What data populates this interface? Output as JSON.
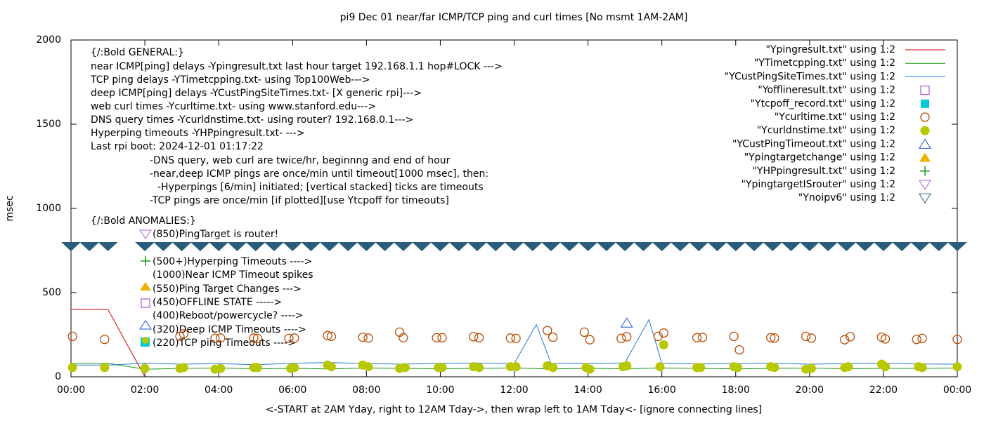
{
  "chart_data": {
    "type": "line",
    "title": "pi9 Dec 01  near/far ICMP/TCP ping and curl times [No msmt 1AM-2AM]",
    "xlabel": "<-START at 2AM Yday, right to 12AM Tday->, then wrap left to 1AM Tday<- [ignore connecting lines]",
    "ylabel": "msec",
    "xlim": [
      0,
      24
    ],
    "ylim": [
      0,
      2000
    ],
    "xticks": [
      {
        "value": 0,
        "label": "00:00"
      },
      {
        "value": 2,
        "label": "02:00"
      },
      {
        "value": 4,
        "label": "04:00"
      },
      {
        "value": 6,
        "label": "06:00"
      },
      {
        "value": 8,
        "label": "08:00"
      },
      {
        "value": 10,
        "label": "10:00"
      },
      {
        "value": 12,
        "label": "12:00"
      },
      {
        "value": 14,
        "label": "14:00"
      },
      {
        "value": 16,
        "label": "16:00"
      },
      {
        "value": 18,
        "label": "18:00"
      },
      {
        "value": 20,
        "label": "20:00"
      },
      {
        "value": 22,
        "label": "22:00"
      },
      {
        "value": 24,
        "label": "00:00"
      }
    ],
    "yticks": [
      0,
      500,
      1000,
      1500,
      2000
    ],
    "legend": "top-right",
    "series": [
      {
        "name": "\"Ypingresult.txt\" using 1:2",
        "style": "line",
        "color": "#cc0000",
        "x": [
          0,
          1,
          2
        ],
        "values": [
          400,
          400,
          0
        ]
      },
      {
        "name": "\"YTimetcpping.txt\" using 1:2",
        "style": "line",
        "color": "#1a9c1a",
        "x": [
          0,
          1,
          2,
          3,
          4,
          5,
          6,
          7,
          8,
          9,
          10,
          11,
          12,
          13,
          14,
          15,
          16,
          17,
          18,
          19,
          20,
          21,
          22,
          23,
          24
        ],
        "values": [
          80,
          80,
          45,
          50,
          52,
          48,
          50,
          47,
          52,
          50,
          48,
          50,
          52,
          47,
          50,
          48,
          52,
          50,
          47,
          50,
          52,
          48,
          50,
          50,
          52
        ]
      },
      {
        "name": "\"YCustPingSiteTimes.txt\" using 1:2",
        "style": "line",
        "color": "#1f78d8",
        "x": [
          0,
          1,
          2,
          3,
          4,
          5,
          6,
          7,
          8,
          9,
          10,
          11,
          12,
          12.6,
          13,
          14,
          15,
          15.65,
          16,
          17,
          18,
          19,
          20,
          21,
          22,
          23,
          24
        ],
        "values": [
          70,
          70,
          80,
          75,
          78,
          72,
          80,
          85,
          78,
          75,
          80,
          82,
          78,
          310,
          80,
          78,
          82,
          340,
          80,
          76,
          78,
          80,
          75,
          78,
          80,
          76,
          75
        ]
      },
      {
        "name": "\"Yofflineresult.txt\" using 1:2",
        "style": "open-square",
        "color": "#9b30c8",
        "x": [],
        "values": []
      },
      {
        "name": "\"Ytcpoff_record.txt\" using 1:2",
        "style": "filled-square",
        "color": "#00c8d8",
        "x": [],
        "values": []
      },
      {
        "name": "\"Ycurltime.txt\" using 1:2",
        "style": "open-circle",
        "color": "#b84a00",
        "x": [
          0.04,
          0.91,
          2.95,
          3.05,
          3.9,
          4.05,
          4.95,
          5.05,
          5.9,
          6.05,
          6.95,
          7.05,
          7.9,
          8.05,
          8.9,
          9.0,
          9.9,
          10.05,
          10.9,
          11.05,
          11.9,
          12.05,
          12.9,
          13.05,
          13.9,
          14.05,
          14.9,
          15.05,
          15.9,
          16.05,
          16.95,
          17.1,
          17.95,
          18.1,
          18.95,
          19.05,
          19.9,
          20.05,
          20.95,
          21.1,
          21.95,
          22.05,
          22.9,
          23.05,
          24.0
        ],
        "values": [
          240,
          222,
          240,
          255,
          228,
          230,
          230,
          228,
          228,
          230,
          245,
          240,
          235,
          230,
          265,
          232,
          232,
          232,
          238,
          232,
          230,
          228,
          275,
          235,
          265,
          220,
          228,
          238,
          240,
          260,
          232,
          234,
          240,
          160,
          232,
          230,
          240,
          230,
          220,
          238,
          235,
          225,
          222,
          228,
          222
        ]
      },
      {
        "name": "\"Ycurldnstime.txt\" using 1:2",
        "style": "filled-circle",
        "color": "#b8c800",
        "x": [
          0.04,
          0.91,
          2.0,
          2.95,
          3.05,
          3.9,
          4.05,
          4.95,
          5.05,
          5.95,
          6.05,
          6.95,
          7.05,
          7.9,
          8.05,
          8.9,
          9.05,
          9.95,
          10.05,
          10.9,
          11.05,
          11.9,
          12.05,
          12.9,
          13.05,
          13.95,
          14.05,
          14.95,
          15.05,
          15.95,
          16.05,
          16.95,
          17.05,
          17.95,
          18.05,
          18.95,
          19.05,
          19.9,
          20.05,
          20.95,
          21.05,
          21.95,
          22.05,
          22.95,
          23.05,
          24.0
        ],
        "values": [
          55,
          55,
          50,
          50,
          55,
          45,
          50,
          55,
          55,
          50,
          55,
          70,
          60,
          70,
          60,
          50,
          55,
          55,
          55,
          60,
          55,
          60,
          60,
          65,
          55,
          55,
          45,
          60,
          65,
          60,
          190,
          55,
          55,
          60,
          55,
          60,
          55,
          45,
          50,
          55,
          60,
          75,
          60,
          60,
          55,
          60
        ]
      },
      {
        "name": "\"YCustPingTimeout.txt\" using 1:2",
        "style": "open-triangle-up",
        "color": "#2050d0",
        "x": [
          15.05
        ],
        "values": [
          320
        ]
      },
      {
        "name": "\"Ypingtargetchange\" using 1:2",
        "style": "filled-triangle-up",
        "color": "#f0b000",
        "x": [],
        "values": []
      },
      {
        "name": "\"YHPpingresult.txt\" using 1:2",
        "style": "plus",
        "color": "#1a9c1a",
        "x": [],
        "values": []
      },
      {
        "name": "\"YpingtargetISrouter\" using 1:2",
        "style": "open-triangle-down",
        "color": "#b060e0",
        "x": [],
        "values": []
      },
      {
        "name": "\"Ynoipv6\" using 1:2",
        "style": "band-triangle-down",
        "color": "#2a5c7c",
        "x": [
          0,
          0.5,
          1.0,
          2,
          2.5,
          3,
          3.5,
          4,
          4.5,
          5,
          5.5,
          6,
          6.5,
          7,
          7.5,
          8,
          8.5,
          9,
          9.5,
          10,
          10.5,
          11,
          11.5,
          12,
          12.5,
          13,
          13.5,
          14,
          14.5,
          15,
          15.5,
          16,
          16.5,
          17,
          17.5,
          18,
          18.5,
          19,
          19.5,
          20,
          20.5,
          21,
          21.5,
          22,
          22.5,
          23,
          23.5,
          24
        ],
        "values": [
          775,
          775,
          775,
          775,
          775,
          775,
          775,
          775,
          775,
          775,
          775,
          775,
          775,
          775,
          775,
          775,
          775,
          775,
          775,
          775,
          775,
          775,
          775,
          775,
          775,
          775,
          775,
          775,
          775,
          775,
          775,
          775,
          775,
          775,
          775,
          775,
          775,
          775,
          775,
          775,
          775,
          775,
          775,
          775,
          775,
          775,
          775,
          775
        ]
      }
    ],
    "annotations": [
      "{/:Bold GENERAL:}",
      "near ICMP[ping] delays -Ypingresult.txt last hour target 192.168.1.1 hop#LOCK --->",
      "TCP ping delays -YTimetcpping.txt- using Top100Web--->",
      "deep ICMP[ping] delays -YCustPingSiteTimes.txt- [X generic rpi]--->",
      "web curl times -Ycurltime.txt- using www.stanford.edu--->",
      "DNS query times -Ycurldnstime.txt- using router? 192.168.0.1--->",
      "Hyperping timeouts -YHPpingresult.txt- --->",
      "Last rpi boot: 2024-12-01 01:17:22",
      "-DNS query, web curl are twice/hr, beginnng and end of hour",
      "-near,deep ICMP pings are once/min until timeout[1000 msec], then:",
      "-Hyperpings [6/min] initiated; [vertical stacked] ticks are timeouts",
      "-TCP pings are once/min [if plotted][use Ytcpoff for timeouts]",
      "{/:Bold ANOMALIES:}",
      "(850)PingTarget is router!",
      "(500+)Hyperping Timeouts ---->",
      "(1000)Near ICMP Timeout spikes",
      "(550)Ping Target Changes --->",
      "(450)OFFLINE STATE ----->",
      "(400)Reboot/powercycle? ---->",
      "(320)Deep ICMP Timeouts ---->",
      "(220)TCP ping Timeouts ---->"
    ]
  }
}
